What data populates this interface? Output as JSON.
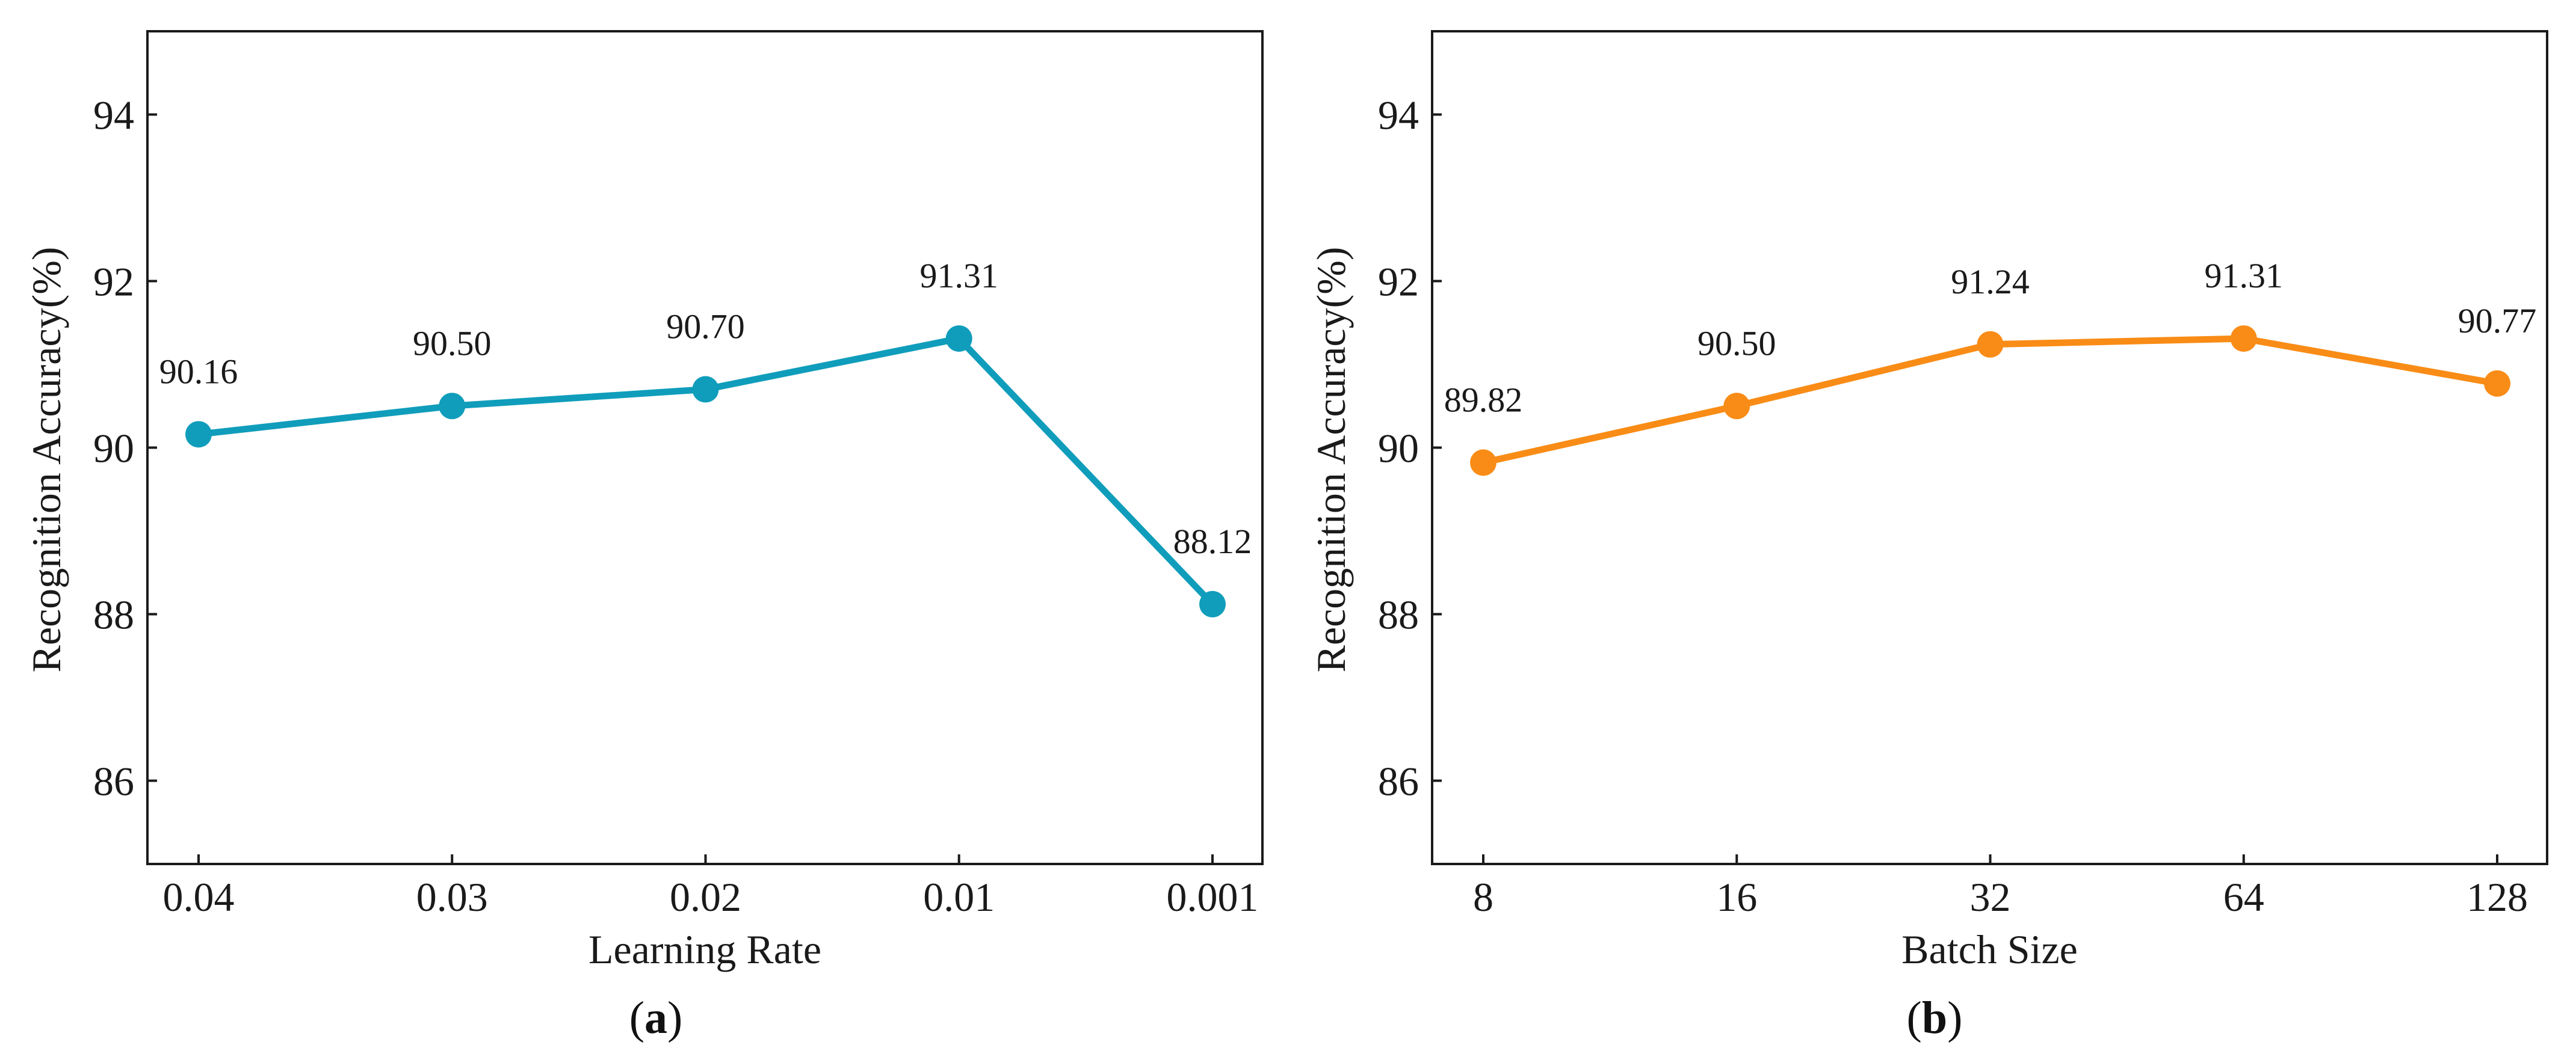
{
  "chart_data": [
    {
      "panel": "a",
      "type": "line",
      "xlabel": "Learning Rate",
      "ylabel": "Recognition Accuracy(%)",
      "categories": [
        "0.04",
        "0.03",
        "0.02",
        "0.01",
        "0.001"
      ],
      "series": [
        {
          "values": [
            90.16,
            90.5,
            90.7,
            91.31,
            88.12
          ],
          "labels": [
            "90.16",
            "90.50",
            "90.70",
            "91.31",
            "88.12"
          ],
          "color": "#0F9DBB"
        }
      ],
      "ylim": [
        85,
        95
      ],
      "yticks": [
        86,
        88,
        90,
        92,
        94
      ],
      "grid": false,
      "legend": "none"
    },
    {
      "panel": "b",
      "type": "line",
      "xlabel": "Batch Size",
      "ylabel": "Recognition Accuracy(%)",
      "categories": [
        "8",
        "16",
        "32",
        "64",
        "128"
      ],
      "series": [
        {
          "values": [
            89.82,
            90.5,
            91.24,
            91.31,
            90.77
          ],
          "labels": [
            "89.82",
            "90.50",
            "91.24",
            "91.31",
            "90.77"
          ],
          "color": "#F98C16"
        }
      ],
      "ylim": [
        85,
        95
      ],
      "yticks": [
        86,
        88,
        90,
        92,
        94
      ],
      "grid": false,
      "legend": "none"
    }
  ],
  "panel_labels": {
    "a": "a",
    "b": "b"
  }
}
